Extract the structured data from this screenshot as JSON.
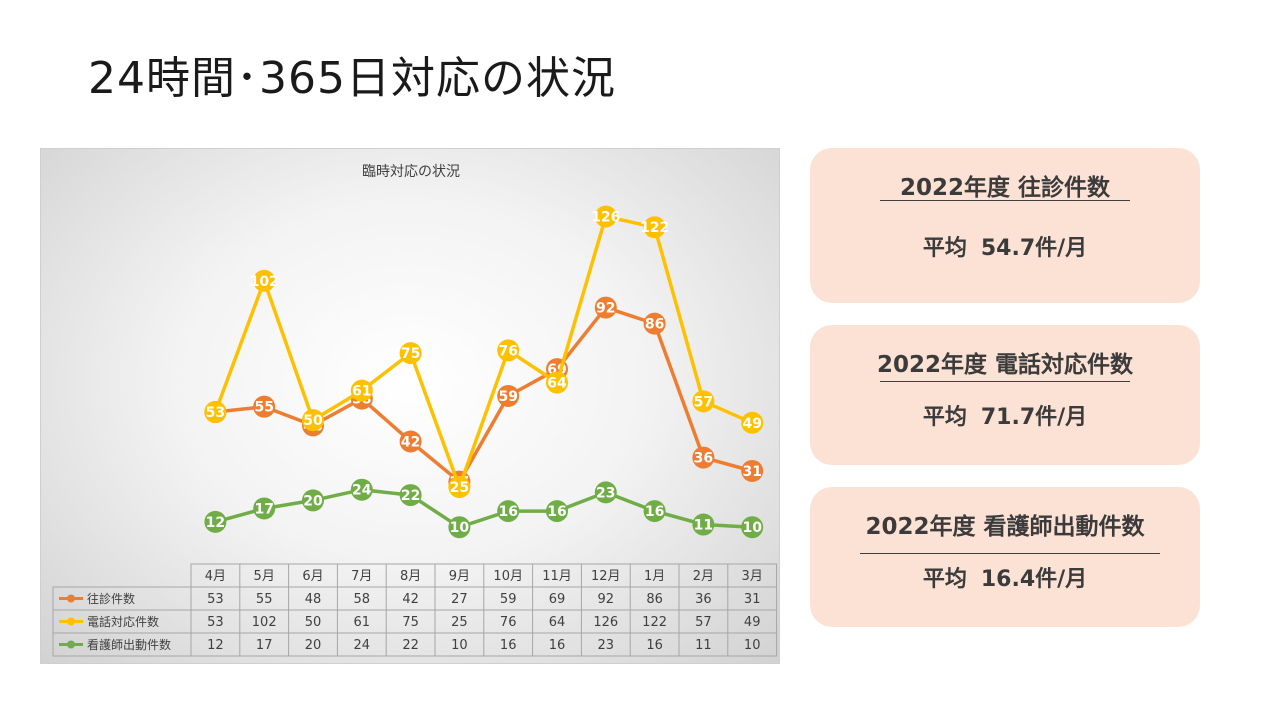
{
  "page_title": "24時間･365日対応の状況",
  "chart_data": {
    "type": "line",
    "title": "臨時対応の状況",
    "categories": [
      "4月",
      "5月",
      "6月",
      "7月",
      "8月",
      "9月",
      "10月",
      "11月",
      "12月",
      "1月",
      "2月",
      "3月"
    ],
    "series": [
      {
        "name": "往診件数",
        "color": "#ed7d31",
        "values": [
          53,
          55,
          48,
          58,
          42,
          27,
          59,
          69,
          92,
          86,
          36,
          31
        ]
      },
      {
        "name": "電話対応件数",
        "color": "#ffc000",
        "values": [
          53,
          102,
          50,
          61,
          75,
          25,
          76,
          64,
          126,
          122,
          57,
          49
        ]
      },
      {
        "name": "看護師出動件数",
        "color": "#70ad47",
        "values": [
          12,
          17,
          20,
          24,
          22,
          10,
          16,
          16,
          23,
          16,
          11,
          10
        ]
      }
    ],
    "xlabel": "",
    "ylabel": "",
    "ylim": [
      0,
      140
    ],
    "grid": false,
    "legend": "data-table"
  },
  "cards": [
    {
      "heading": "2022年度  往診件数",
      "avg_label": "平均",
      "avg_value": "54.7件/月"
    },
    {
      "heading": "2022年度  電話対応件数",
      "avg_label": "平均",
      "avg_value": "71.7件/月"
    },
    {
      "heading": "2022年度  看護師出動件数",
      "avg_label": "平均",
      "avg_value": "16.4件/月"
    }
  ]
}
